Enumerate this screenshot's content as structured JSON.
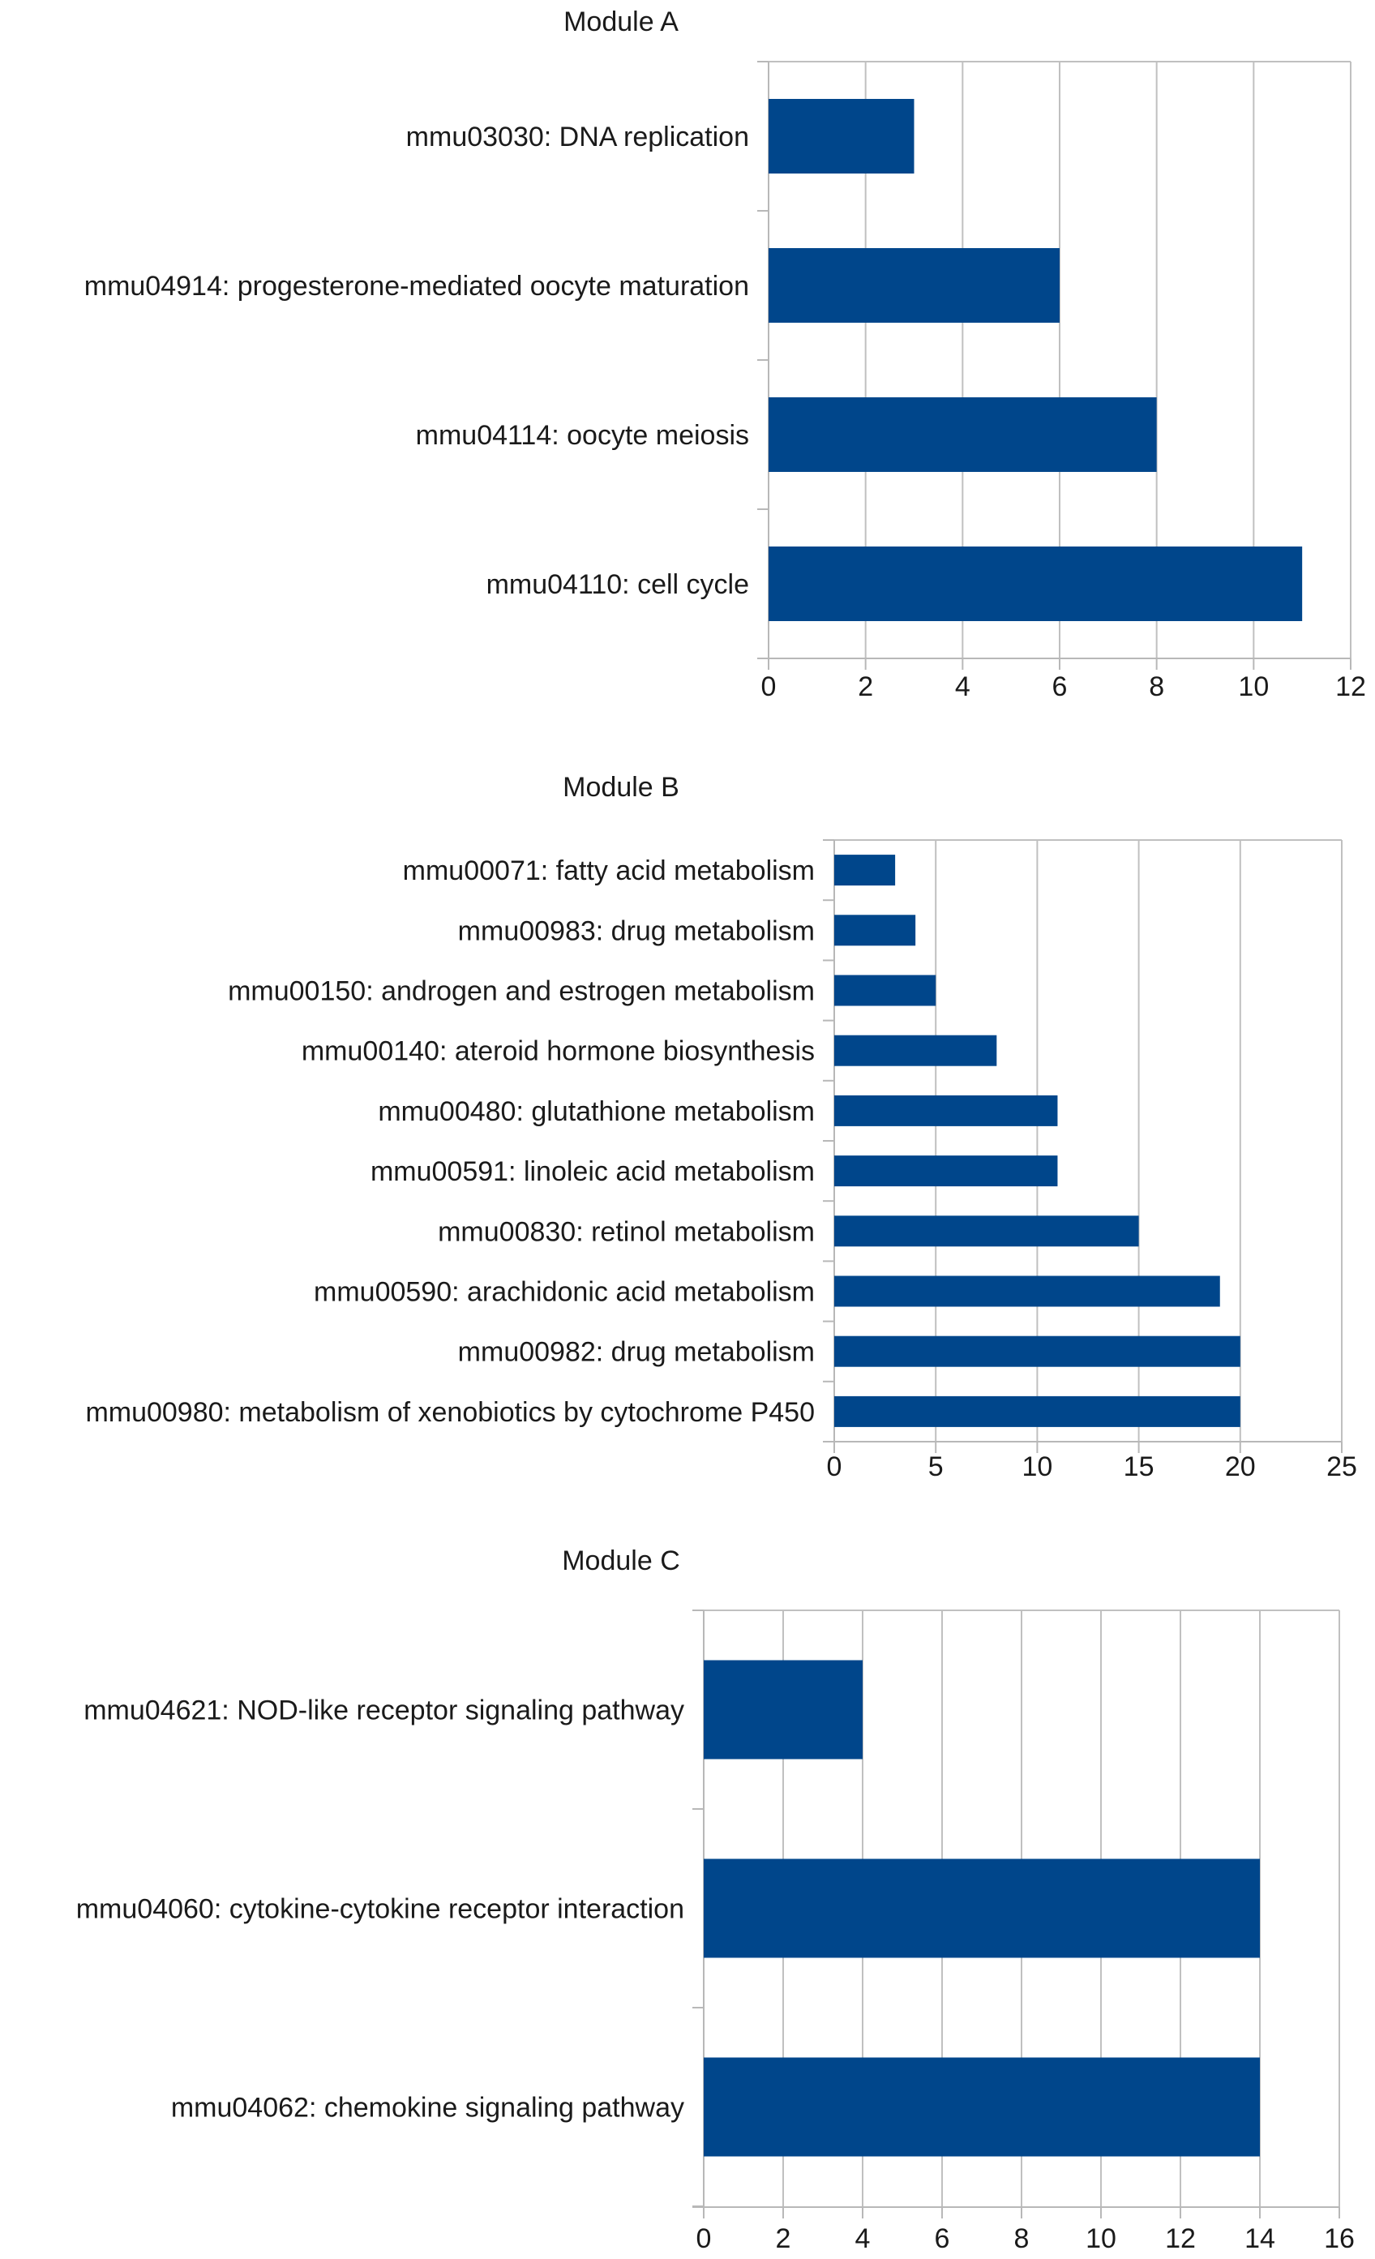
{
  "chart_data": [
    {
      "type": "bar",
      "orientation": "horizontal",
      "title": "Module A",
      "xlabel": "",
      "ylabel": "",
      "xlim": [
        0,
        12
      ],
      "xticks": [
        0,
        2,
        4,
        6,
        8,
        10,
        12
      ],
      "grid": true,
      "categories": [
        "mmu03030: DNA replication",
        "mmu04914: progesterone-mediated oocyte maturation",
        "mmu04114: oocyte meiosis",
        "mmu04110: cell cycle"
      ],
      "values": [
        3,
        6,
        8,
        11
      ],
      "bar_color": "#00468b"
    },
    {
      "type": "bar",
      "orientation": "horizontal",
      "title": "Module B",
      "xlabel": "",
      "ylabel": "",
      "xlim": [
        0,
        25
      ],
      "xticks": [
        0,
        5,
        10,
        15,
        20,
        25
      ],
      "grid": true,
      "categories": [
        "mmu00071: fatty acid metabolism",
        "mmu00983: drug metabolism",
        "mmu00150: androgen and estrogen metabolism",
        "mmu00140: ateroid hormone biosynthesis",
        "mmu00480: glutathione metabolism",
        "mmu00591: linoleic acid metabolism",
        "mmu00830: retinol metabolism",
        "mmu00590: arachidonic acid metabolism",
        "mmu00982: drug metabolism",
        "mmu00980: metabolism of xenobiotics by cytochrome P450"
      ],
      "values": [
        3,
        4,
        5,
        8,
        11,
        11,
        15,
        19,
        20,
        20
      ],
      "bar_color": "#00468b"
    },
    {
      "type": "bar",
      "orientation": "horizontal",
      "title": "Module C",
      "xlabel": "",
      "ylabel": "",
      "xlim": [
        0,
        16
      ],
      "xticks": [
        0,
        2,
        4,
        6,
        8,
        10,
        12,
        14,
        16
      ],
      "grid": true,
      "categories": [
        "mmu04621: NOD-like receptor signaling pathway",
        "mmu04060: cytokine-cytokine receptor interaction",
        "mmu04062: chemokine signaling pathway"
      ],
      "values": [
        4,
        14,
        14
      ],
      "bar_color": "#00468b"
    }
  ]
}
